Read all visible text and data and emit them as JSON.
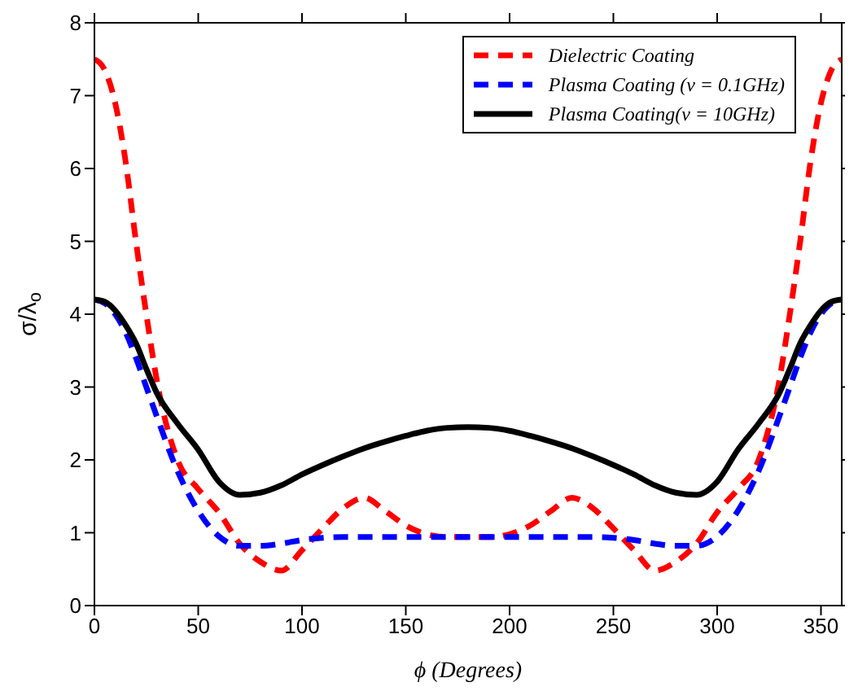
{
  "chart_data": {
    "type": "line",
    "xlabel": "ϕ (Degrees)",
    "ylabel": "σ/λ$_{o}$",
    "x": [
      0,
      5,
      10,
      15,
      20,
      25,
      30,
      40,
      50,
      60,
      70,
      80,
      90,
      100,
      110,
      120,
      130,
      140,
      150,
      160,
      170,
      180,
      190,
      200,
      210,
      220,
      230,
      240,
      250,
      260,
      270,
      280,
      290,
      300,
      310,
      320,
      330,
      335,
      340,
      345,
      350,
      355,
      360
    ],
    "series": [
      {
        "name": "Dielectric Coating",
        "color": "#ff0000",
        "line_style": "dashed",
        "values": [
          7.5,
          7.35,
          6.9,
          6.1,
          5.0,
          4.0,
          3.1,
          2.0,
          1.6,
          1.28,
          0.85,
          0.6,
          0.48,
          0.76,
          1.06,
          1.34,
          1.48,
          1.3,
          1.1,
          0.98,
          0.94,
          0.94,
          0.94,
          0.98,
          1.1,
          1.3,
          1.48,
          1.34,
          1.06,
          0.76,
          0.48,
          0.6,
          0.85,
          1.28,
          1.6,
          2.0,
          3.1,
          4.0,
          5.0,
          6.1,
          6.9,
          7.35,
          7.5
        ]
      },
      {
        "name": "Plasma Coating (ν = 0.1GHz)",
        "color": "#0000ff",
        "line_style": "dashed",
        "values": [
          4.2,
          4.15,
          4.0,
          3.75,
          3.4,
          3.0,
          2.6,
          1.85,
          1.3,
          0.95,
          0.82,
          0.82,
          0.85,
          0.9,
          0.93,
          0.94,
          0.94,
          0.94,
          0.94,
          0.94,
          0.94,
          0.94,
          0.94,
          0.94,
          0.94,
          0.94,
          0.94,
          0.94,
          0.93,
          0.9,
          0.85,
          0.82,
          0.82,
          0.95,
          1.3,
          1.85,
          2.6,
          3.0,
          3.4,
          3.75,
          4.0,
          4.15,
          4.2
        ]
      },
      {
        "name": "Plasma Coating(ν = 10GHz)",
        "color": "#000000",
        "line_style": "solid",
        "values": [
          4.2,
          4.17,
          4.05,
          3.85,
          3.6,
          3.25,
          2.92,
          2.5,
          2.14,
          1.7,
          1.52,
          1.55,
          1.65,
          1.8,
          1.93,
          2.05,
          2.16,
          2.25,
          2.33,
          2.4,
          2.44,
          2.45,
          2.44,
          2.4,
          2.33,
          2.25,
          2.16,
          2.05,
          1.93,
          1.8,
          1.65,
          1.55,
          1.52,
          1.7,
          2.14,
          2.5,
          2.92,
          3.25,
          3.6,
          3.85,
          4.05,
          4.17,
          4.2
        ]
      }
    ],
    "xlim": [
      0,
      360
    ],
    "xticks": [
      0,
      50,
      100,
      150,
      200,
      250,
      300,
      350
    ],
    "ylim": [
      0,
      8
    ],
    "yticks": [
      0,
      1,
      2,
      3,
      4,
      5,
      6,
      7,
      8
    ],
    "grid": false,
    "legend": "top right",
    "marker": "none"
  }
}
